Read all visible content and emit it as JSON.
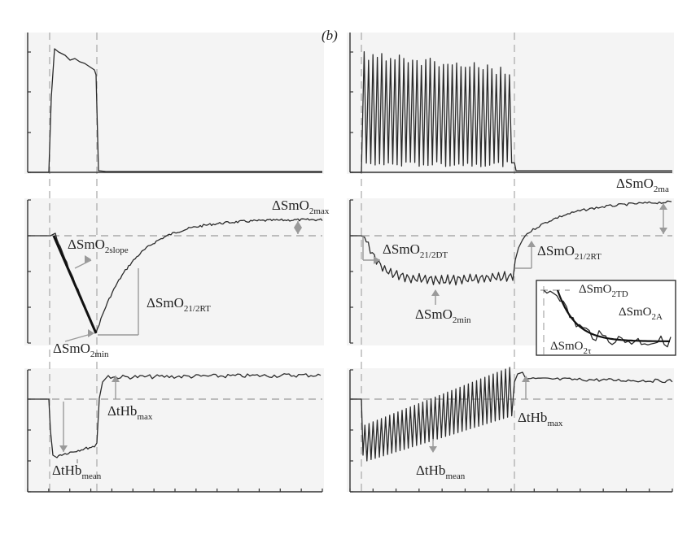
{
  "chart_data": [
    {
      "type": "line",
      "panel": "left-top",
      "description_shown": "stimulus trace",
      "series": [
        {
          "values_note": "plateau after onset, returns to zero",
          "x": [
            0,
            0.5,
            1,
            2,
            3,
            4,
            5,
            6,
            6.5,
            7,
            10,
            20
          ],
          "y": [
            0,
            0,
            0.95,
            0.92,
            0.9,
            0.88,
            0.86,
            0.84,
            0.82,
            0,
            0,
            0
          ]
        }
      ]
    },
    {
      "type": "line",
      "panel": "left-middle",
      "labels": [
        "ΔSmO2max",
        "ΔSmO2slope",
        "ΔSmO21/2RT",
        "ΔSmO2min"
      ],
      "series": [
        {
          "x": [
            0,
            1,
            6,
            8,
            10,
            14,
            18,
            22,
            26,
            30
          ],
          "y": [
            0,
            0,
            -1.35,
            -0.95,
            -0.55,
            -0.2,
            0.05,
            0.15,
            0.22,
            0.22
          ]
        }
      ]
    },
    {
      "type": "line",
      "panel": "left-bottom",
      "labels": [
        "ΔtHbmax",
        "ΔtHbmean"
      ],
      "series": [
        {
          "x": [
            0,
            0.8,
            1.5,
            3,
            5,
            6,
            7,
            10,
            20,
            30
          ],
          "y": [
            0,
            -0.95,
            -0.95,
            -0.98,
            -0.9,
            -0.8,
            0.3,
            0.32,
            0.31,
            0.35
          ]
        }
      ]
    },
    {
      "type": "line",
      "panel": "right-top",
      "description_shown": "oscillating stimulus trace",
      "series": [
        {
          "values_note": "oscillation between 0.05 and 0.8 then zero",
          "cycles": 34
        }
      ]
    },
    {
      "type": "line",
      "panel": "right-middle",
      "labels": [
        "ΔSmO2max",
        "ΔSmO21/2DT",
        "ΔSmO21/2RT",
        "ΔSmO2min",
        "ΔSmO2TD",
        "ΔSmO2A",
        "ΔSmO2τ"
      ],
      "series": [
        {
          "x": [
            0,
            1,
            3,
            6,
            10,
            14,
            16,
            18,
            22,
            26,
            30
          ],
          "y": [
            0,
            -0.05,
            -0.55,
            -0.62,
            -0.6,
            -0.55,
            0.0,
            0.2,
            0.35,
            0.42,
            0.45
          ]
        }
      ]
    },
    {
      "type": "line",
      "panel": "right-bottom",
      "labels": [
        "ΔtHbmax",
        "ΔtHbmean"
      ],
      "series": [
        {
          "values_note": "oscillating, mean rising from -0.75 to 0.25",
          "x": [
            0,
            1,
            5,
            10,
            15,
            17,
            18,
            24,
            30
          ],
          "y": [
            0,
            -0.8,
            -0.6,
            -0.35,
            -0.1,
            0.45,
            0.38,
            0.3,
            0.3
          ]
        }
      ]
    }
  ],
  "labels": {
    "panel_b": "(b)",
    "left_mid": {
      "max_main": "ΔSmO",
      "max_sub_pre": "2max",
      "slope_main": "ΔSmO",
      "slope_sub": "2slope",
      "rt_main": "ΔSmO",
      "rt_sub": "21/2RT",
      "min_main": "ΔSmO",
      "min_sub": "2min"
    },
    "left_bot": {
      "max_main": "ΔtHb",
      "max_sub": "max",
      "mean_main": "ΔtHb",
      "mean_sub": "mean"
    },
    "right_mid": {
      "max_main": "ΔSmO",
      "max_sub": "2ma",
      "dt_main": "ΔSmO",
      "dt_sub": "21/2DT",
      "rt_main": "ΔSmO",
      "rt_sub": "21/2RT",
      "min_main": "ΔSmO",
      "min_sub": "2min"
    },
    "inset": {
      "td_main": "ΔSmO",
      "td_sub": "2TD",
      "a_main": "ΔSmO",
      "a_sub": "2A",
      "tau_main": "ΔSmO",
      "tau_sub": "2τ"
    },
    "right_bot": {
      "max_main": "ΔtHb",
      "max_sub": "max",
      "mean_main": "ΔtHb",
      "mean_sub": "mean"
    }
  }
}
